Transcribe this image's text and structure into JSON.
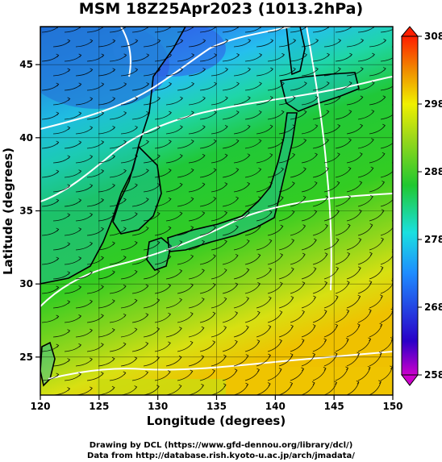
{
  "title": "MSM 18Z25Apr2023 (1013.2hPa)",
  "xlabel": "Longitude (degrees)",
  "ylabel": "Latitude  (degrees)",
  "x_ticks": [
    "120",
    "125",
    "130",
    "135",
    "140",
    "145",
    "150"
  ],
  "y_ticks": [
    "25",
    "30",
    "35",
    "40",
    "45"
  ],
  "colorbar_ticks": [
    "258",
    "268",
    "278",
    "288",
    "298",
    "308"
  ],
  "footer": {
    "line1": "Drawing by DCL (https://www.gfd-dennou.org/library/dcl/)",
    "line2": "Data from http://database.rish.kyoto-u.ac.jp/arch/jmadata/"
  },
  "chart_data": {
    "type": "heatmap",
    "description_fields": "temperature shading (K) with streamlines and coastlines",
    "xlim": [
      120,
      150
    ],
    "ylim": [
      22.4,
      47.6
    ],
    "colorbar_range": [
      258,
      308
    ],
    "colors": {
      "cold": "#1a3fd6",
      "cyan": "#19c8ee",
      "green": "#22c41c",
      "yellow": "#e6e600",
      "warm": "#f0b400",
      "coast": "#000000",
      "contour": "#ffffff"
    }
  }
}
